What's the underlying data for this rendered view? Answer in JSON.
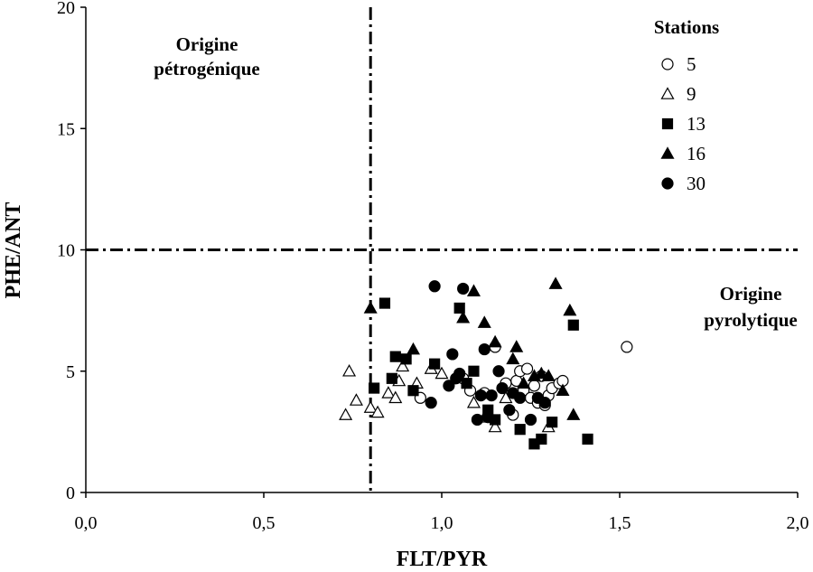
{
  "chart_data": {
    "type": "scatter",
    "xlabel": "FLT/PYR",
    "ylabel": "PHE/ANT",
    "xlim": [
      0,
      2
    ],
    "ylim": [
      0,
      20
    ],
    "x_ticks": [
      0,
      0.5,
      1,
      1.5,
      2
    ],
    "x_tick_labels": [
      "0,0",
      "0,5",
      "1,0",
      "1,5",
      "2,0"
    ],
    "y_ticks": [
      0,
      5,
      10,
      15,
      20
    ],
    "y_tick_labels": [
      "0",
      "5",
      "10",
      "15",
      "20"
    ],
    "grid": false,
    "legend_placement": "top-right",
    "legend_title": "Stations",
    "thresholds": {
      "x": 0.8,
      "y": 10
    },
    "annotations": [
      {
        "lines": [
          "Origine",
          "pétrogénique"
        ],
        "x": 0.37,
        "y": 18.2
      },
      {
        "lines": [
          "Origine",
          "pyrolytique"
        ],
        "x": 1.83,
        "y": 7.8
      }
    ],
    "series": [
      {
        "name": "5",
        "marker": "circle-open",
        "points": [
          [
            0.94,
            3.9
          ],
          [
            1.06,
            4.7
          ],
          [
            1.08,
            4.2
          ],
          [
            1.12,
            4.1
          ],
          [
            1.15,
            6.0
          ],
          [
            1.18,
            4.5
          ],
          [
            1.2,
            3.2
          ],
          [
            1.21,
            4.6
          ],
          [
            1.22,
            5.0
          ],
          [
            1.23,
            4.2
          ],
          [
            1.24,
            5.1
          ],
          [
            1.25,
            3.9
          ],
          [
            1.26,
            4.4
          ],
          [
            1.27,
            3.7
          ],
          [
            1.28,
            4.8
          ],
          [
            1.29,
            3.6
          ],
          [
            1.3,
            4.0
          ],
          [
            1.31,
            4.3
          ],
          [
            1.33,
            4.5
          ],
          [
            1.34,
            4.6
          ],
          [
            1.52,
            6.0
          ]
        ]
      },
      {
        "name": "9",
        "marker": "triangle-open",
        "points": [
          [
            0.73,
            3.2
          ],
          [
            0.74,
            5.0
          ],
          [
            0.76,
            3.8
          ],
          [
            0.8,
            3.5
          ],
          [
            0.82,
            3.3
          ],
          [
            0.85,
            4.1
          ],
          [
            0.87,
            3.9
          ],
          [
            0.88,
            4.6
          ],
          [
            0.89,
            5.2
          ],
          [
            0.93,
            4.5
          ],
          [
            0.97,
            5.1
          ],
          [
            1.0,
            4.9
          ],
          [
            1.09,
            3.7
          ],
          [
            1.12,
            3.1
          ],
          [
            1.15,
            2.7
          ],
          [
            1.18,
            3.9
          ],
          [
            1.3,
            2.7
          ]
        ]
      },
      {
        "name": "13",
        "marker": "square-filled",
        "points": [
          [
            0.81,
            4.3
          ],
          [
            0.84,
            7.8
          ],
          [
            0.86,
            4.7
          ],
          [
            0.87,
            5.6
          ],
          [
            0.9,
            5.5
          ],
          [
            0.92,
            4.2
          ],
          [
            0.98,
            5.3
          ],
          [
            1.05,
            7.6
          ],
          [
            1.07,
            4.5
          ],
          [
            1.09,
            5.0
          ],
          [
            1.13,
            3.4
          ],
          [
            1.15,
            3.0
          ],
          [
            1.22,
            2.6
          ],
          [
            1.26,
            2.0
          ],
          [
            1.28,
            2.2
          ],
          [
            1.31,
            2.9
          ],
          [
            1.37,
            6.9
          ],
          [
            1.41,
            2.2
          ]
        ]
      },
      {
        "name": "16",
        "marker": "triangle-filled",
        "points": [
          [
            0.8,
            7.6
          ],
          [
            0.92,
            5.9
          ],
          [
            1.06,
            7.2
          ],
          [
            1.09,
            8.3
          ],
          [
            1.12,
            7.0
          ],
          [
            1.15,
            6.2
          ],
          [
            1.2,
            5.5
          ],
          [
            1.21,
            6.0
          ],
          [
            1.23,
            4.5
          ],
          [
            1.26,
            4.8
          ],
          [
            1.28,
            4.9
          ],
          [
            1.3,
            4.8
          ],
          [
            1.32,
            8.6
          ],
          [
            1.34,
            4.2
          ],
          [
            1.36,
            7.5
          ],
          [
            1.37,
            3.2
          ]
        ]
      },
      {
        "name": "30",
        "marker": "circle-filled",
        "points": [
          [
            0.97,
            3.7
          ],
          [
            0.98,
            8.5
          ],
          [
            1.02,
            4.4
          ],
          [
            1.03,
            5.7
          ],
          [
            1.04,
            4.7
          ],
          [
            1.05,
            4.9
          ],
          [
            1.06,
            8.4
          ],
          [
            1.1,
            3.0
          ],
          [
            1.11,
            4.0
          ],
          [
            1.12,
            5.9
          ],
          [
            1.13,
            3.1
          ],
          [
            1.14,
            4.0
          ],
          [
            1.16,
            5.0
          ],
          [
            1.17,
            4.3
          ],
          [
            1.19,
            3.4
          ],
          [
            1.2,
            4.1
          ],
          [
            1.22,
            3.9
          ],
          [
            1.25,
            3.0
          ],
          [
            1.27,
            3.9
          ],
          [
            1.29,
            3.7
          ]
        ]
      }
    ]
  }
}
